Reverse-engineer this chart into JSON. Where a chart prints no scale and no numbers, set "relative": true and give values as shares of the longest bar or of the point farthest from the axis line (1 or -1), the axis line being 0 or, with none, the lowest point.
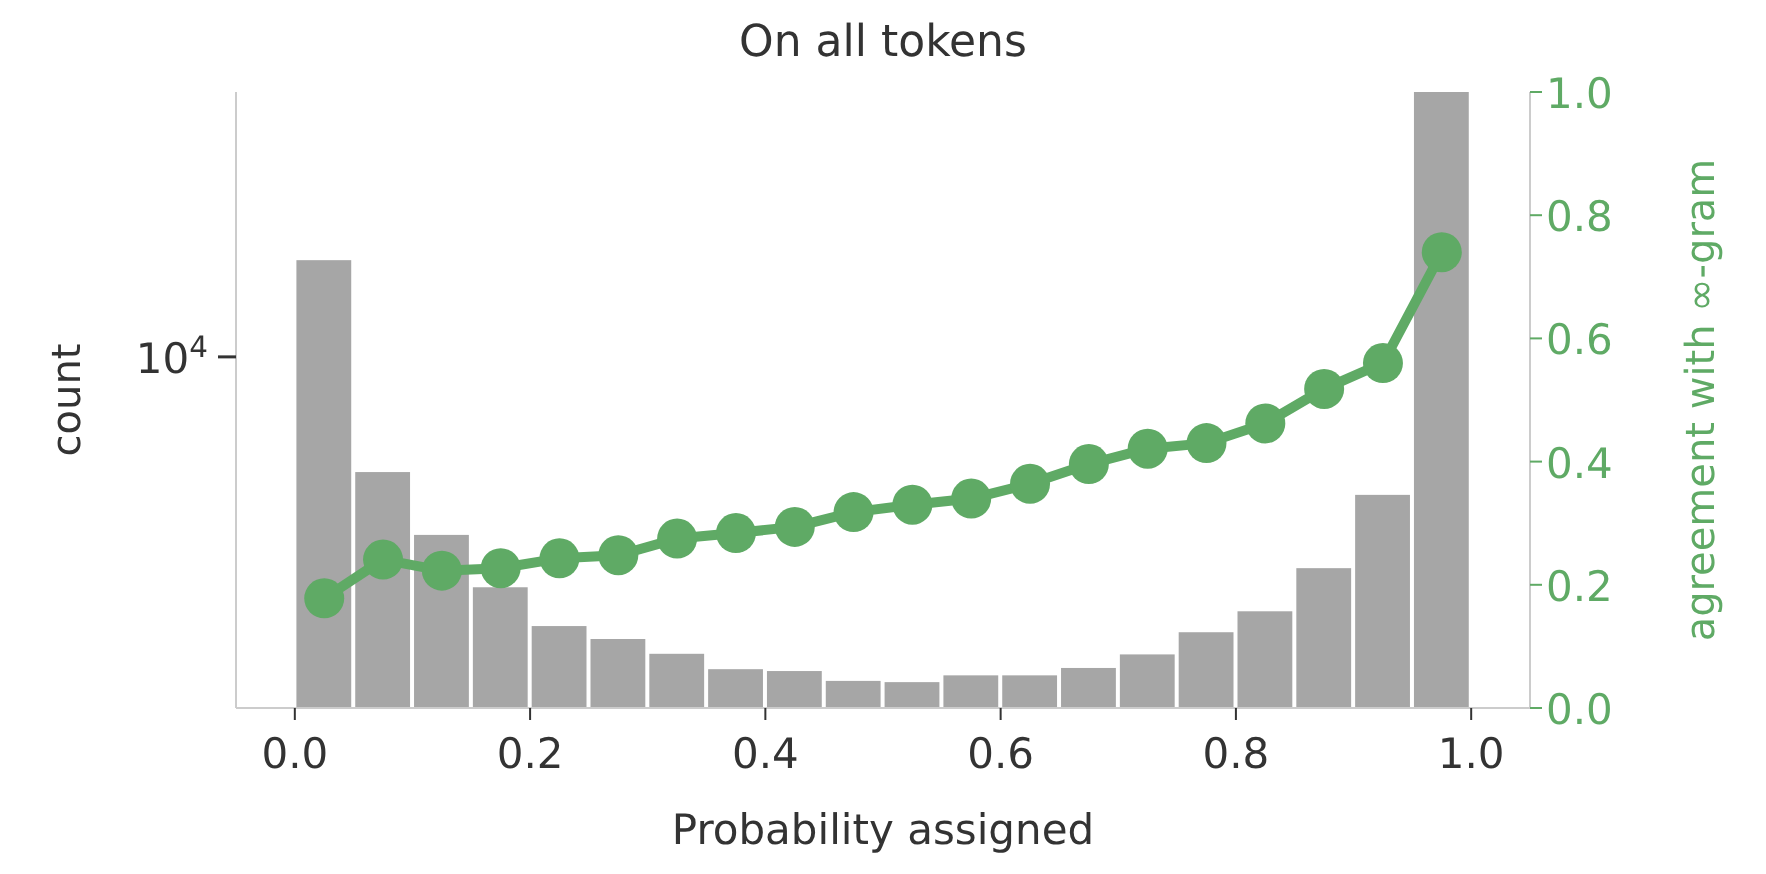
{
  "chart_data": {
    "type": "bar",
    "title": "On all tokens",
    "xlabel": "Probability assigned",
    "ylabel": "count",
    "y2label": "agreement with ∞-gram",
    "relative": true,
    "annotations": [
      "10$^{4}$"
    ],
    "x": [
      0.025,
      0.075,
      0.125,
      0.175,
      0.225,
      0.275,
      0.325,
      0.375,
      0.425,
      0.475,
      0.525,
      0.575,
      0.625,
      0.675,
      0.725,
      0.775,
      0.825,
      0.875,
      0.925,
      0.975
    ],
    "values": [
      0.727,
      0.383,
      0.281,
      0.196,
      0.133,
      0.112,
      0.088,
      0.063,
      0.06,
      0.044,
      0.042,
      0.053,
      0.053,
      0.065,
      0.087,
      0.123,
      0.157,
      0.227,
      0.346,
      1
    ],
    "color": "#a6a6a6",
    "series": [
      {
        "type": "line",
        "axis": "y2",
        "color": "#5faa65",
        "x": [
          0.025,
          0.075,
          0.125,
          0.175,
          0.225,
          0.275,
          0.325,
          0.375,
          0.425,
          0.475,
          0.525,
          0.575,
          0.625,
          0.675,
          0.725,
          0.775,
          0.825,
          0.875,
          0.925,
          0.975
        ],
        "values": [
          0.178,
          0.241,
          0.223,
          0.227,
          0.243,
          0.248,
          0.275,
          0.284,
          0.294,
          0.318,
          0.33,
          0.34,
          0.364,
          0.396,
          0.421,
          0.43,
          0.462,
          0.518,
          0.56,
          0.74
        ]
      }
    ],
    "marker": "circle",
    "xlim": [
      -0.05,
      1.05
    ],
    "xticks": [
      {
        "value": 0,
        "label": "0.0"
      },
      0.2,
      0.4,
      0.6,
      0.8,
      {
        "value": 1,
        "label": "1.0"
      }
    ],
    "y2lim": [
      0,
      1
    ],
    "y2ticks": [
      {
        "value": 0,
        "label": "0.0"
      },
      0.2,
      0.4,
      0.6,
      0.8,
      {
        "value": 1,
        "label": "1.0"
      }
    ]
  }
}
